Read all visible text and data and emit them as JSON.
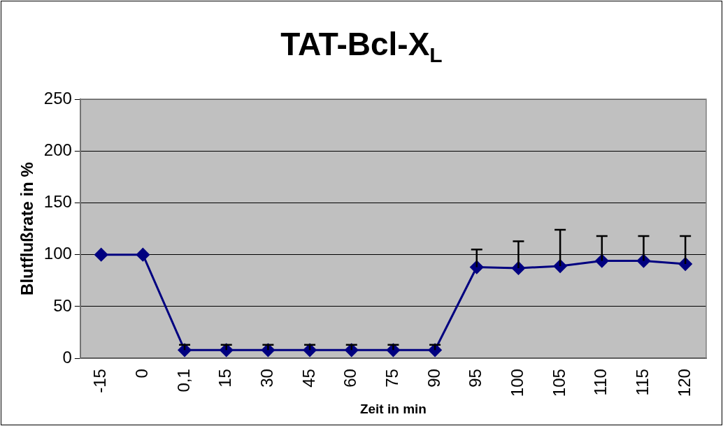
{
  "chart_data": {
    "type": "line",
    "title": "TAT-Bcl-X$_{L}$",
    "xlabel": "Zeit in min",
    "ylabel": "Blutflußrate in %",
    "categories": [
      "-15",
      "0",
      "0,1",
      "15",
      "30",
      "45",
      "60",
      "75",
      "90",
      "95",
      "100",
      "105",
      "110",
      "115",
      "120"
    ],
    "series": [
      {
        "color": "#000080",
        "values": [
          100,
          100,
          8,
          8,
          8,
          8,
          8,
          8,
          8,
          88,
          87,
          89,
          94,
          94,
          91
        ],
        "errors": [
          null,
          null,
          [
            8,
            13
          ],
          [
            8,
            13
          ],
          [
            8,
            13
          ],
          [
            8,
            13
          ],
          [
            8,
            13
          ],
          [
            8,
            13
          ],
          [
            8,
            13
          ],
          [
            88,
            105
          ],
          [
            87,
            113
          ],
          [
            89,
            124
          ],
          [
            94,
            118
          ],
          [
            94,
            118
          ],
          [
            91,
            118
          ]
        ]
      }
    ],
    "ylim": [
      0,
      250
    ],
    "yticks": [
      0,
      50,
      100,
      150,
      200,
      250
    ],
    "grid": "y",
    "legend": false,
    "marker": "diamond",
    "line_style": "solid"
  }
}
